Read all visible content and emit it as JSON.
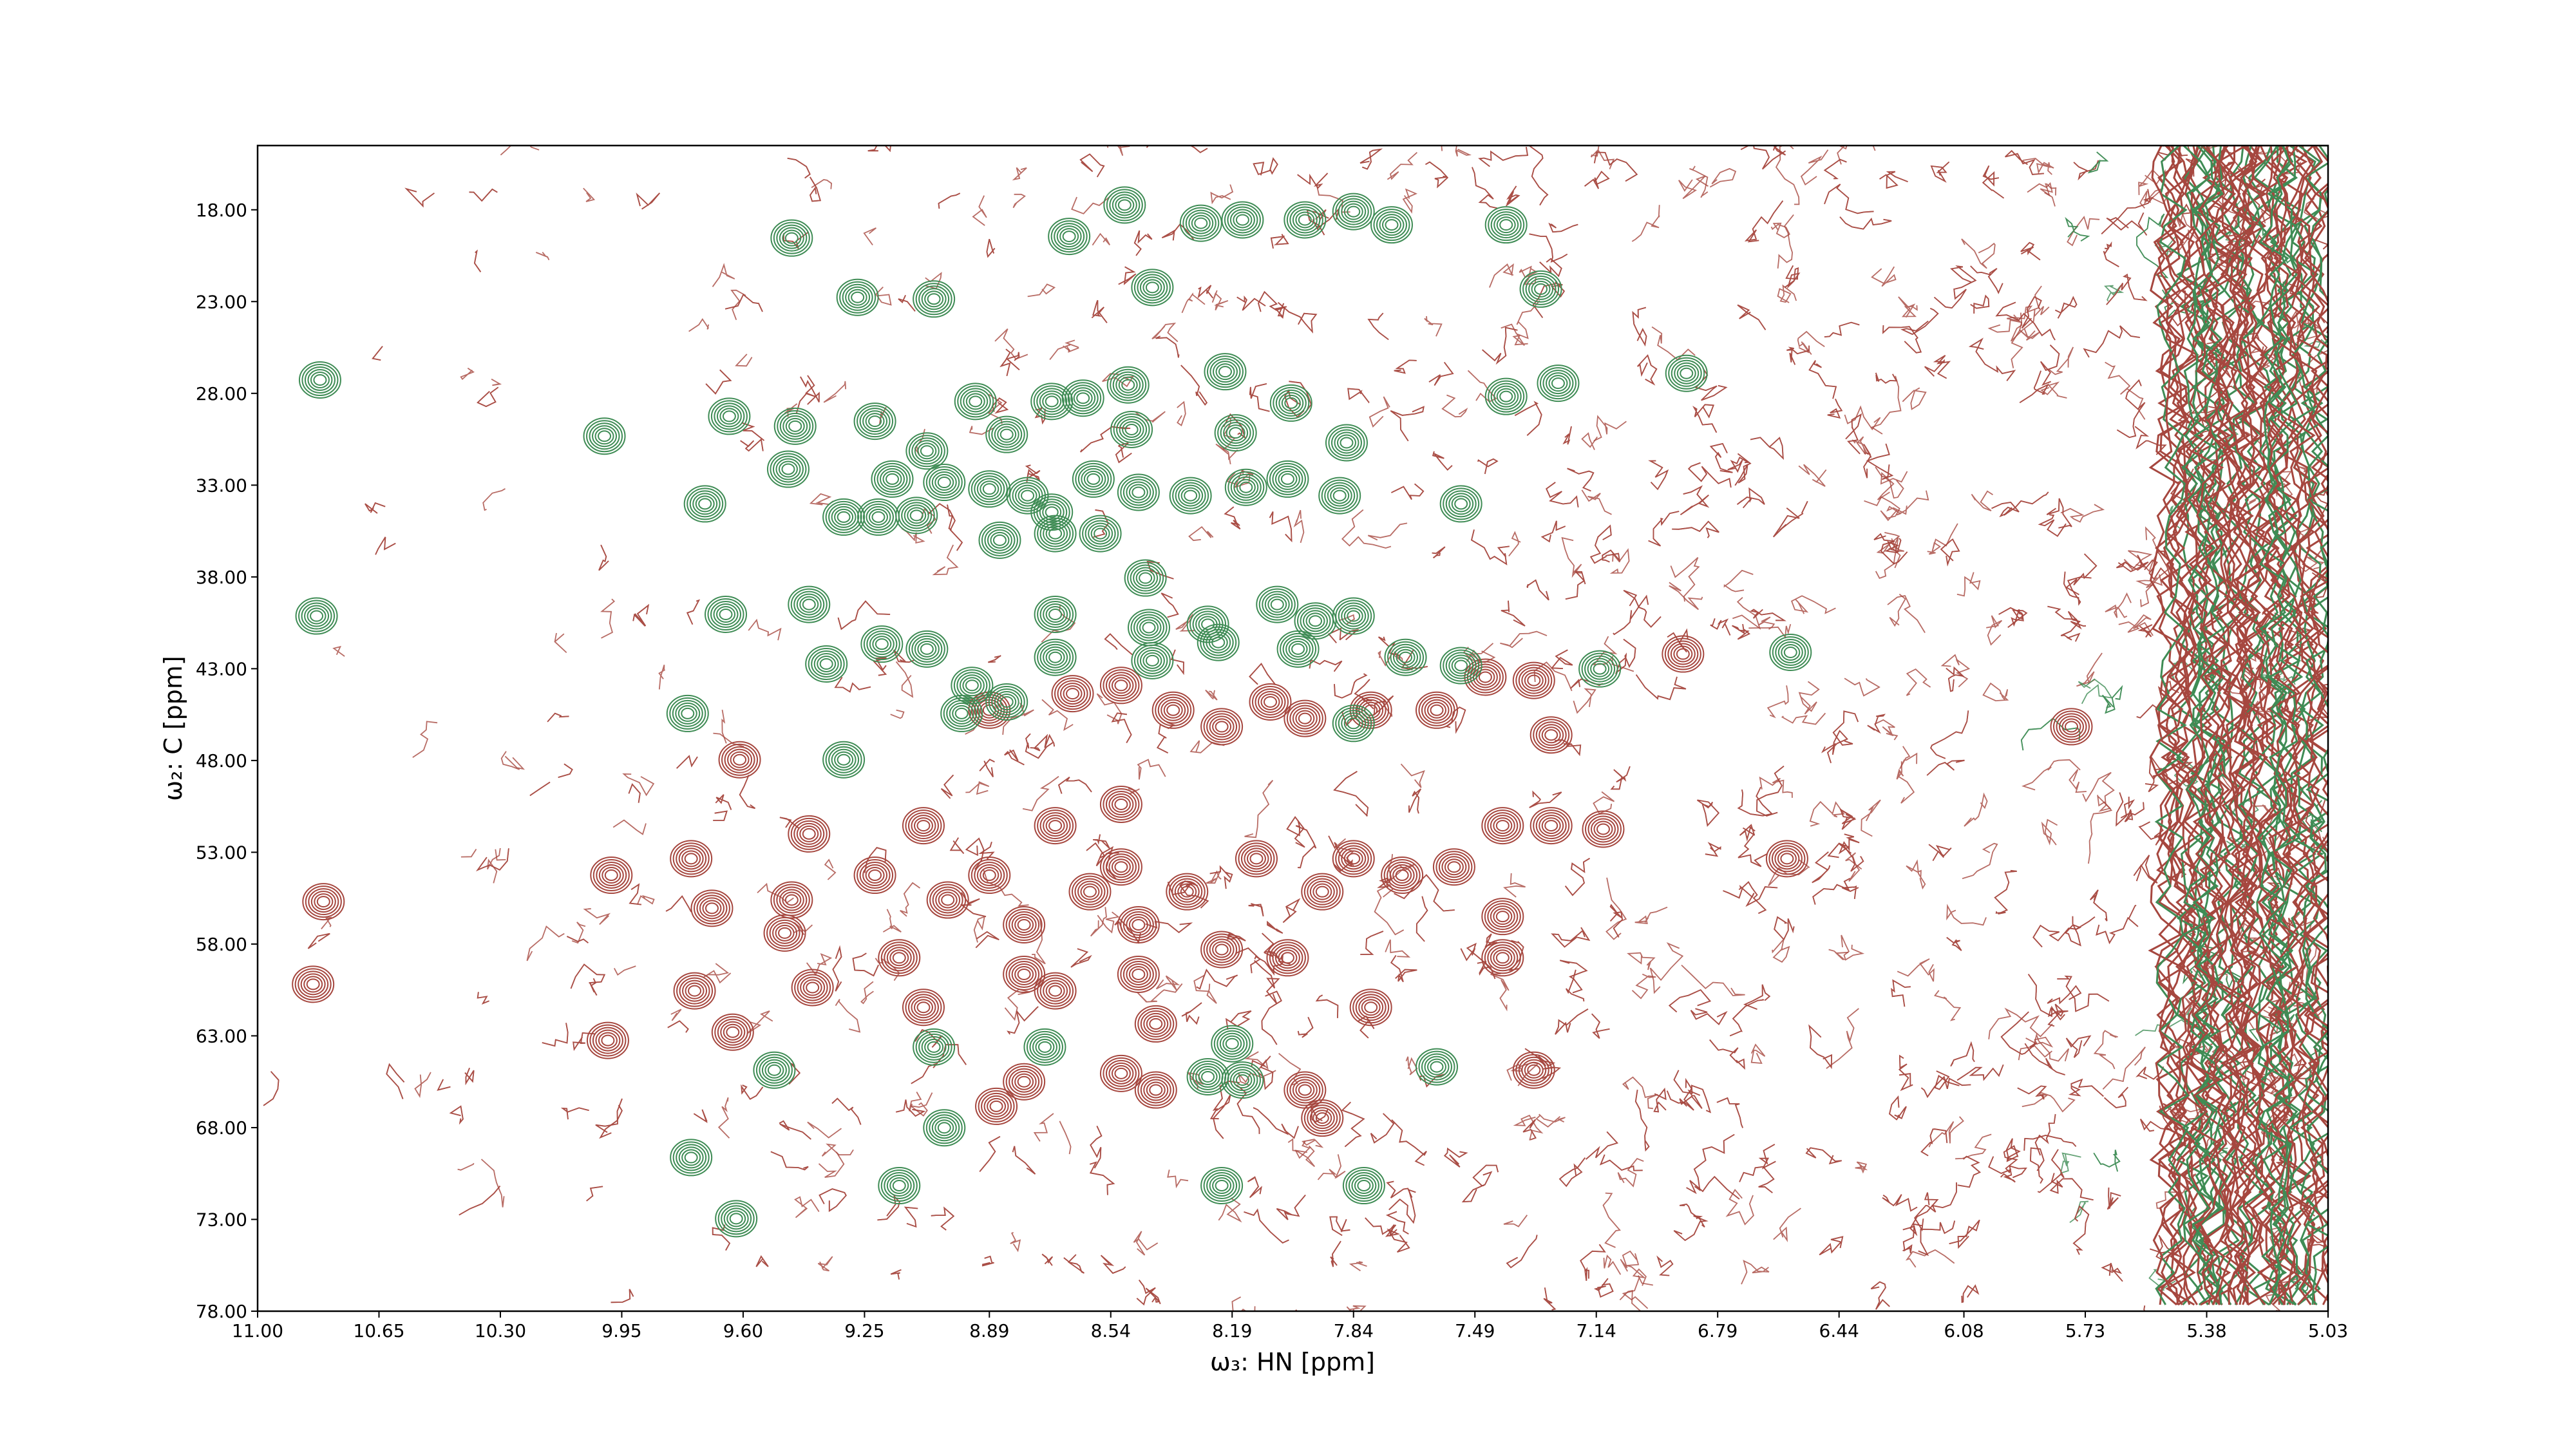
{
  "chart_data": {
    "type": "contour",
    "xlabel": "ω₃: HN [ppm]",
    "ylabel": "ω₂: C [ppm]",
    "xlim": [
      11.0,
      5.03
    ],
    "ylim": [
      78.0,
      14.5
    ],
    "xticks": [
      {
        "value": 11.0,
        "label": "11.00"
      },
      {
        "value": 10.65,
        "label": "10.65"
      },
      {
        "value": 10.3,
        "label": "10.30"
      },
      {
        "value": 9.95,
        "label": "9.95"
      },
      {
        "value": 9.6,
        "label": "9.60"
      },
      {
        "value": 9.25,
        "label": "9.25"
      },
      {
        "value": 8.89,
        "label": "8.89"
      },
      {
        "value": 8.54,
        "label": "8.54"
      },
      {
        "value": 8.19,
        "label": "8.19"
      },
      {
        "value": 7.84,
        "label": "7.84"
      },
      {
        "value": 7.49,
        "label": "7.49"
      },
      {
        "value": 7.14,
        "label": "7.14"
      },
      {
        "value": 6.79,
        "label": "6.79"
      },
      {
        "value": 6.44,
        "label": "6.44"
      },
      {
        "value": 6.08,
        "label": "6.08"
      },
      {
        "value": 5.73,
        "label": "5.73"
      },
      {
        "value": 5.38,
        "label": "5.38"
      },
      {
        "value": 5.03,
        "label": "5.03"
      }
    ],
    "yticks": [
      {
        "value": 18,
        "label": "18.00"
      },
      {
        "value": 23,
        "label": "23.00"
      },
      {
        "value": 28,
        "label": "28.00"
      },
      {
        "value": 33,
        "label": "33.00"
      },
      {
        "value": 38,
        "label": "38.00"
      },
      {
        "value": 43,
        "label": "43.00"
      },
      {
        "value": 48,
        "label": "48.00"
      },
      {
        "value": 53,
        "label": "53.00"
      },
      {
        "value": 58,
        "label": "58.00"
      },
      {
        "value": 63,
        "label": "63.00"
      },
      {
        "value": 68,
        "label": "68.00"
      },
      {
        "value": 73,
        "label": "73.00"
      },
      {
        "value": 78,
        "label": "78.00"
      }
    ],
    "series": [
      {
        "color": "#a6473f",
        "x": [
          10.81,
          10.84,
          9.99,
          9.98,
          9.75,
          9.69,
          9.61,
          9.74,
          9.63,
          9.41,
          9.46,
          9.48,
          9.4,
          9.22,
          9.08,
          9.01,
          9.15,
          9.08,
          8.89,
          8.79,
          8.79,
          8.7,
          8.6,
          8.51,
          8.51,
          8.46,
          8.46,
          8.32,
          8.22,
          8.12,
          8.03,
          7.93,
          7.84,
          7.79,
          7.7,
          7.55,
          7.41,
          7.27,
          7.12,
          7.41,
          7.41,
          8.89,
          8.65,
          8.51,
          8.36,
          8.22,
          8.08,
          7.98,
          7.79,
          7.6,
          7.46,
          7.32,
          7.27,
          6.89,
          6.59,
          5.77,
          7.32,
          8.87,
          8.79,
          8.51,
          8.41,
          7.93,
          7.98,
          8.7,
          8.41
        ],
        "y": [
          55.69,
          60.19,
          63.25,
          54.25,
          53.35,
          56.05,
          47.96,
          60.55,
          62.8,
          52.0,
          55.6,
          57.4,
          60.37,
          54.25,
          51.55,
          55.6,
          58.75,
          61.45,
          54.25,
          56.95,
          59.65,
          51.55,
          55.15,
          50.39,
          53.8,
          56.95,
          59.65,
          55.15,
          58.3,
          53.35,
          58.75,
          55.15,
          53.35,
          61.45,
          54.25,
          53.8,
          51.55,
          51.55,
          51.74,
          56.5,
          58.75,
          45.26,
          44.36,
          43.91,
          45.26,
          46.16,
          44.81,
          45.71,
          45.26,
          45.26,
          43.46,
          43.64,
          46.61,
          42.2,
          53.35,
          46.16,
          64.87,
          66.84,
          65.5,
          65.05,
          65.95,
          67.48,
          65.95,
          60.55,
          62.35
        ]
      },
      {
        "color": "#3f8c55",
        "x": [
          8.5,
          8.66,
          8.28,
          8.16,
          7.98,
          7.84,
          7.73,
          7.4,
          9.46,
          9.27,
          9.05,
          8.42,
          7.3,
          10.82,
          8.49,
          8.21,
          7.4,
          7.25,
          6.88,
          9.64,
          9.45,
          9.22,
          9.07,
          8.93,
          8.84,
          8.71,
          8.62,
          8.48,
          8.18,
          8.02,
          7.86,
          10.0,
          9.47,
          9.71,
          9.17,
          9.02,
          8.89,
          8.78,
          8.71,
          8.59,
          8.46,
          8.31,
          8.15,
          8.03,
          7.88,
          9.31,
          9.21,
          9.1,
          8.86,
          8.7,
          8.57,
          7.53,
          8.44,
          10.83,
          9.65,
          9.41,
          8.7,
          8.43,
          8.26,
          8.06,
          7.95,
          7.84,
          9.36,
          9.2,
          9.07,
          8.94,
          8.7,
          8.42,
          8.23,
          8.0,
          7.69,
          7.53,
          7.13,
          6.58,
          9.76,
          8.97,
          8.84,
          9.31,
          7.84,
          9.05,
          8.73,
          8.19,
          9.51,
          8.26,
          8.16,
          7.6,
          9.02,
          9.75,
          9.15,
          8.22,
          7.81,
          9.62
        ],
        "y": [
          17.74,
          19.45,
          18.73,
          18.55,
          18.55,
          18.1,
          18.82,
          18.82,
          19.54,
          22.77,
          22.86,
          22.23,
          22.32,
          27.27,
          27.54,
          26.82,
          28.17,
          27.45,
          26.91,
          29.25,
          29.79,
          29.52,
          31.14,
          28.44,
          30.24,
          28.44,
          28.26,
          29.97,
          30.15,
          28.53,
          30.69,
          30.33,
          32.13,
          34.02,
          32.67,
          32.85,
          33.21,
          33.57,
          34.47,
          32.67,
          33.39,
          33.57,
          33.12,
          32.67,
          33.57,
          34.74,
          34.74,
          34.65,
          36.0,
          35.64,
          35.64,
          34.02,
          38.06,
          40.13,
          40.04,
          39.5,
          40.04,
          40.76,
          40.58,
          39.5,
          40.4,
          40.13,
          42.74,
          41.66,
          41.93,
          43.91,
          42.38,
          42.56,
          41.57,
          41.93,
          42.38,
          42.83,
          43.01,
          42.11,
          45.44,
          45.44,
          44.81,
          47.96,
          45.98,
          63.61,
          63.61,
          63.43,
          64.87,
          65.23,
          65.41,
          64.69,
          68.01,
          69.63,
          71.16,
          71.16,
          71.16,
          72.96
        ]
      }
    ]
  }
}
